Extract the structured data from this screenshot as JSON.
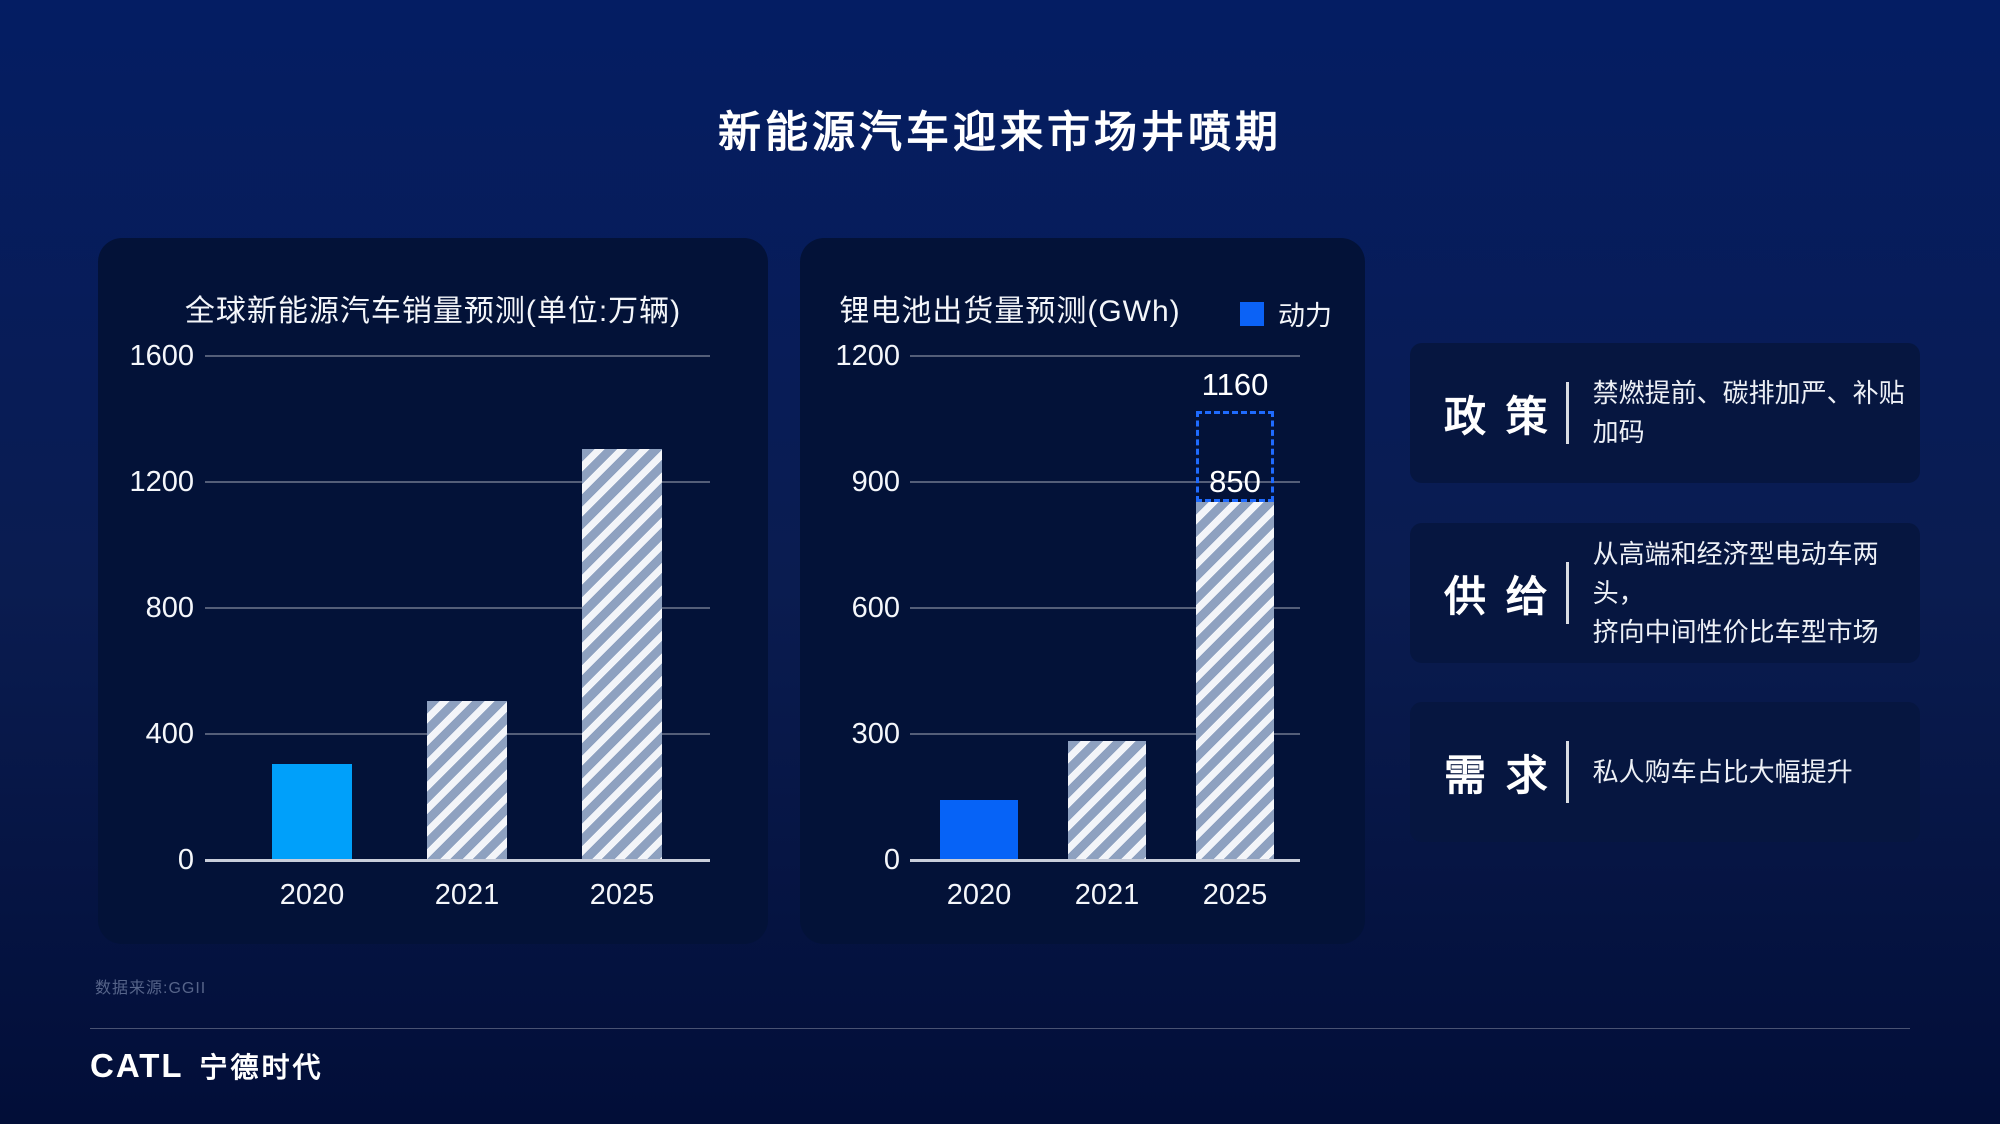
{
  "page_title": "新能源汽车迎来市场井喷期",
  "chart_data": [
    {
      "type": "bar",
      "title": "全球新能源汽车销量预测(单位:万辆)",
      "categories": [
        "2020",
        "2021",
        "2025"
      ],
      "values": [
        300,
        500,
        1300
      ],
      "yticks": [
        0,
        400,
        800,
        1200,
        1600
      ],
      "ylim": [
        0,
        1600
      ],
      "bar_styles": [
        "solid",
        "hatch",
        "hatch"
      ],
      "solid_color": "#00A0FA",
      "grid": "on",
      "legend_position": "none"
    },
    {
      "type": "bar",
      "title": "锂电池出货量预测(GWh)",
      "legend": [
        {
          "label": "动力",
          "color": "#0B62F6"
        }
      ],
      "categories": [
        "2020",
        "2021",
        "2025"
      ],
      "values": [
        140,
        280,
        850
      ],
      "yticks": [
        0,
        300,
        600,
        900,
        1200
      ],
      "ylim": [
        0,
        1200
      ],
      "bar_styles": [
        "solid",
        "hatch",
        "hatch"
      ],
      "solid_color": "#0663F7",
      "data_labels": [
        {
          "category": "2025",
          "text": "850"
        }
      ],
      "projection": {
        "category": "2025",
        "value": 1160,
        "text": "1160",
        "style": "dashed"
      },
      "grid": "on",
      "legend_position": "top-right"
    }
  ],
  "factors": [
    {
      "label": "政 策",
      "desc_lines": [
        "禁燃提前、碳排加严、补贴加码"
      ]
    },
    {
      "label": "供 给",
      "desc_lines": [
        "从高端和经济型电动车两头，",
        "挤向中间性价比车型市场"
      ]
    },
    {
      "label": "需 求",
      "desc_lines": [
        "私人购车占比大幅提升"
      ]
    }
  ],
  "footer": {
    "source": "数据来源:GGII",
    "logo": "CATL",
    "logo_cn": "宁德时代"
  },
  "colors": {
    "page_top": "#041D63",
    "page_bottom": "#020E38",
    "card_bg": "#031238",
    "panel_bg": "#061640",
    "hatch_base": "#8EA1C0",
    "hatch_stripe": "#F3F5F9",
    "azure_bar": "#00A0FA",
    "royal_bar": "#0663F7",
    "dash_outline": "#1F6BFE"
  }
}
